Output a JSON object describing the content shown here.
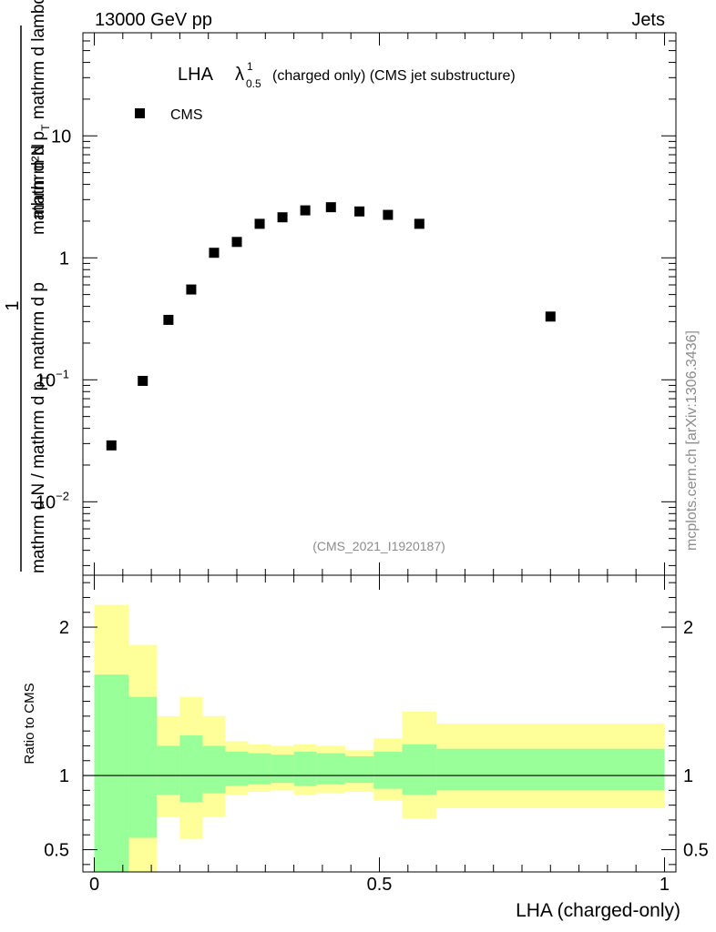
{
  "header": {
    "left": "13000 GeV pp",
    "right": "Jets"
  },
  "side_label": "mcplots.cern.ch [arXiv:1306.3436]",
  "chart_data": [
    {
      "type": "scatter",
      "title_main": "LHA",
      "title_lambda": "λ",
      "title_sup": "1",
      "title_sub": "0.5",
      "title_rest": "(charged only) (CMS jet substructure)",
      "legend": "CMS",
      "analysis_tag": "(CMS_2021_I1920187)",
      "ylabel": "1 / mathrm d N / mathrm d p_T mathrm d p_T mathrm d lambda mathrm d^2N",
      "ylabel_numerator": "mathrm d²N",
      "ylabel_numerator_sub": "mathrm d p",
      "ylabel_numerator_sub_T": "T",
      "ylabel_numerator_tail": " mathrm d lambda",
      "ylabel_frac_1": "1",
      "ylabel_denominator": "mathrm d N / mathrm d p",
      "ylabel_denominator_T": "T",
      "ylabel_denominator_tail": "mathrm d p",
      "yscale": "log",
      "ylim": [
        0.0025,
        70
      ],
      "xlim": [
        -0.02,
        1.02
      ],
      "yticks": [
        {
          "value": 0.01,
          "base": "10",
          "exp": "−2"
        },
        {
          "value": 0.1,
          "base": "10",
          "exp": "−1"
        },
        {
          "value": 1,
          "base": "1",
          "exp": ""
        },
        {
          "value": 10,
          "base": "10",
          "exp": ""
        }
      ],
      "series": [
        {
          "name": "CMS",
          "x": [
            0.03,
            0.085,
            0.13,
            0.17,
            0.21,
            0.25,
            0.29,
            0.33,
            0.37,
            0.415,
            0.465,
            0.515,
            0.57,
            0.8
          ],
          "y": [
            0.029,
            0.098,
            0.31,
            0.55,
            1.1,
            1.35,
            1.9,
            2.15,
            2.45,
            2.6,
            2.4,
            2.25,
            1.9,
            0.33
          ]
        }
      ]
    },
    {
      "type": "area",
      "ylabel": "Ratio to CMS",
      "xlabel": "LHA (charged-only)",
      "ylim": [
        0.35,
        2.35
      ],
      "xlim": [
        -0.02,
        1.02
      ],
      "reference": 1,
      "xticks": [
        {
          "value": 0,
          "label": "0"
        },
        {
          "value": 0.5,
          "label": "0.5"
        },
        {
          "value": 1,
          "label": "1"
        }
      ],
      "yticks": [
        {
          "value": 0.5,
          "label": "0.5"
        },
        {
          "value": 1,
          "label": "1"
        },
        {
          "value": 2,
          "label": "2"
        }
      ],
      "bins": [
        0,
        0.06,
        0.11,
        0.15,
        0.19,
        0.23,
        0.27,
        0.31,
        0.35,
        0.39,
        0.44,
        0.49,
        0.54,
        0.6,
        1.0
      ],
      "band_inner_lo": [
        0.3,
        0.58,
        0.87,
        0.82,
        0.88,
        0.93,
        0.94,
        0.95,
        0.93,
        0.94,
        0.95,
        0.91,
        0.87,
        0.9
      ],
      "band_inner_hi": [
        1.68,
        1.53,
        1.2,
        1.27,
        1.2,
        1.16,
        1.15,
        1.14,
        1.16,
        1.15,
        1.13,
        1.16,
        1.21,
        1.18
      ],
      "band_outer_lo": [
        0.3,
        0.3,
        0.72,
        0.57,
        0.72,
        0.87,
        0.89,
        0.9,
        0.87,
        0.88,
        0.89,
        0.83,
        0.71,
        0.78
      ],
      "band_outer_hi": [
        2.15,
        1.88,
        1.4,
        1.53,
        1.4,
        1.23,
        1.21,
        1.2,
        1.21,
        1.2,
        1.17,
        1.25,
        1.43,
        1.35
      ],
      "colors": {
        "inner": "#99ff99",
        "outer": "#ffff99",
        "line": "#000000"
      }
    }
  ]
}
